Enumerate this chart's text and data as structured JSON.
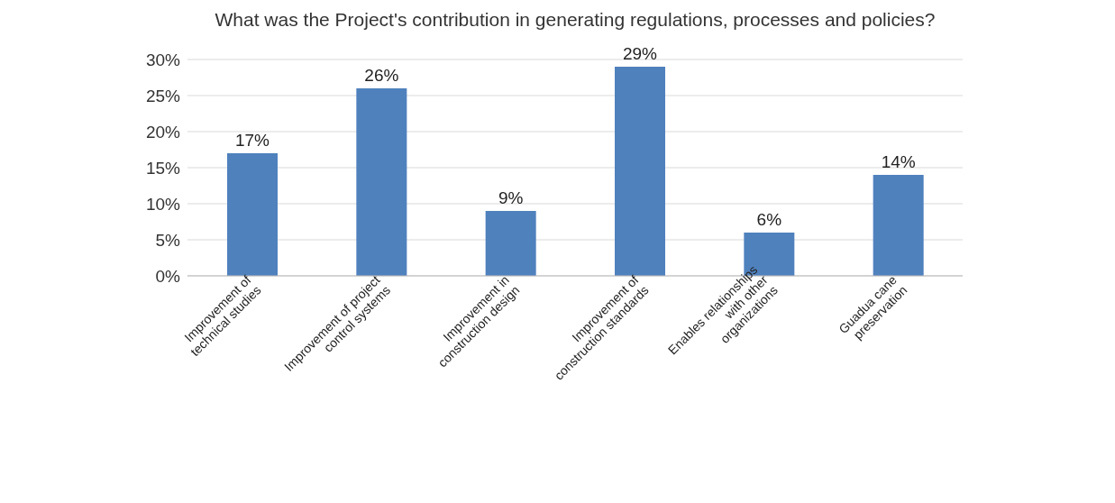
{
  "chart_data": {
    "type": "bar",
    "title": "What was the Project's contribution in generating regulations, processes and policies?",
    "categories": [
      "Improvement of technical studies",
      "Improvement of project control systems",
      "Improvement in construction design",
      "Improvement of construction standards",
      "Enables relationships with other organizations",
      "Guadua cane preservation"
    ],
    "values": [
      17,
      26,
      9,
      29,
      6,
      14
    ],
    "value_labels": [
      "17%",
      "26%",
      "9%",
      "29%",
      "6%",
      "14%"
    ],
    "color": "#4f81bd",
    "ylim": [
      0,
      30
    ],
    "yticks": [
      {
        "value": 0,
        "label": "0%"
      },
      {
        "value": 5,
        "label": "5%"
      },
      {
        "value": 10,
        "label": "10%"
      },
      {
        "value": 15,
        "label": "15%"
      },
      {
        "value": 20,
        "label": "20%"
      },
      {
        "value": 25,
        "label": "25%"
      },
      {
        "value": 30,
        "label": "30%"
      }
    ],
    "grid": "y"
  }
}
